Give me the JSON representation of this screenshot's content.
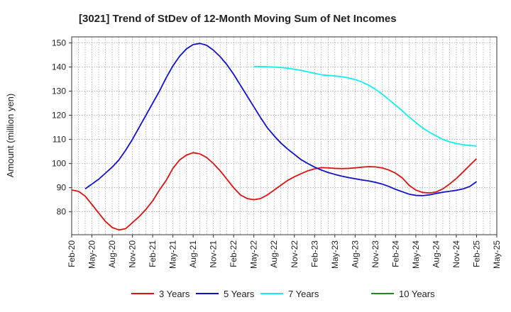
{
  "chart_data": {
    "type": "line",
    "title": "[3021]  Trend of StDev of 12-Month Moving Sum of Net Incomes",
    "xlabel": "",
    "ylabel": "Amount (million yen)",
    "x_ticks": [
      "Feb-20",
      "May-20",
      "Aug-20",
      "Nov-20",
      "Feb-21",
      "May-21",
      "Aug-21",
      "Nov-21",
      "Feb-22",
      "May-22",
      "Aug-22",
      "Nov-22",
      "Feb-23",
      "May-23",
      "Aug-23",
      "Nov-23",
      "Feb-24",
      "May-24",
      "Aug-24",
      "Nov-24",
      "Feb-25",
      "May-25"
    ],
    "y_ticks": [
      80,
      90,
      100,
      110,
      120,
      130,
      140,
      150
    ],
    "ylim": [
      70.5,
      152.5
    ],
    "grid": true,
    "legend_position": "bottom",
    "series": [
      {
        "name": "3 Years",
        "color": "#dd1111",
        "points": [
          [
            "Feb-20",
            89
          ],
          [
            "Mar-20",
            88.5
          ],
          [
            "Apr-20",
            86.5
          ],
          [
            "May-20",
            83
          ],
          [
            "Jun-20",
            79.5
          ],
          [
            "Jul-20",
            76
          ],
          [
            "Aug-20",
            73.5
          ],
          [
            "Sep-20",
            72.5
          ],
          [
            "Oct-20",
            73
          ],
          [
            "Nov-20",
            75.5
          ],
          [
            "Dec-20",
            78
          ],
          [
            "Jan-21",
            81
          ],
          [
            "Feb-21",
            84.5
          ],
          [
            "Mar-21",
            89
          ],
          [
            "Apr-21",
            93
          ],
          [
            "May-21",
            98
          ],
          [
            "Jun-21",
            101.5
          ],
          [
            "Jul-21",
            103.5
          ],
          [
            "Aug-21",
            104.5
          ],
          [
            "Sep-21",
            104
          ],
          [
            "Oct-21",
            102.5
          ],
          [
            "Nov-21",
            100
          ],
          [
            "Dec-21",
            97
          ],
          [
            "Jan-22",
            93.5
          ],
          [
            "Feb-22",
            90
          ],
          [
            "Mar-22",
            87
          ],
          [
            "Apr-22",
            85.5
          ],
          [
            "May-22",
            85
          ],
          [
            "Jun-22",
            85.5
          ],
          [
            "Jul-22",
            87
          ],
          [
            "Aug-22",
            89
          ],
          [
            "Sep-22",
            91
          ],
          [
            "Oct-22",
            93
          ],
          [
            "Nov-22",
            94.5
          ],
          [
            "Dec-22",
            95.8
          ],
          [
            "Jan-23",
            97
          ],
          [
            "Feb-23",
            97.8
          ],
          [
            "Mar-23",
            98.3
          ],
          [
            "Apr-23",
            98.2
          ],
          [
            "May-23",
            98
          ],
          [
            "Jun-23",
            97.9
          ],
          [
            "Jul-23",
            98
          ],
          [
            "Aug-23",
            98.2
          ],
          [
            "Sep-23",
            98.5
          ],
          [
            "Oct-23",
            98.7
          ],
          [
            "Nov-23",
            98.6
          ],
          [
            "Dec-23",
            98.2
          ],
          [
            "Jan-24",
            97.3
          ],
          [
            "Feb-24",
            96
          ],
          [
            "Mar-24",
            94
          ],
          [
            "Apr-24",
            91
          ],
          [
            "May-24",
            89
          ],
          [
            "Jun-24",
            88
          ],
          [
            "Jul-24",
            87.8
          ],
          [
            "Aug-24",
            88.2
          ],
          [
            "Sep-24",
            89.5
          ],
          [
            "Oct-24",
            91.5
          ],
          [
            "Nov-24",
            93.8
          ],
          [
            "Dec-24",
            96.5
          ],
          [
            "Jan-25",
            99.3
          ],
          [
            "Feb-25",
            102
          ]
        ]
      },
      {
        "name": "5 Years",
        "color": "#1111cc",
        "points": [
          [
            "Apr-20",
            89.5
          ],
          [
            "May-20",
            91.5
          ],
          [
            "Jun-20",
            93.5
          ],
          [
            "Jul-20",
            96
          ],
          [
            "Aug-20",
            98.5
          ],
          [
            "Sep-20",
            101.5
          ],
          [
            "Oct-20",
            105.5
          ],
          [
            "Nov-20",
            110
          ],
          [
            "Dec-20",
            115
          ],
          [
            "Jan-21",
            120
          ],
          [
            "Feb-21",
            125
          ],
          [
            "Mar-21",
            130
          ],
          [
            "Apr-21",
            135.5
          ],
          [
            "May-21",
            140.5
          ],
          [
            "Jun-21",
            144.5
          ],
          [
            "Jul-21",
            147.5
          ],
          [
            "Aug-21",
            149.3
          ],
          [
            "Sep-21",
            149.8
          ],
          [
            "Oct-21",
            149
          ],
          [
            "Nov-21",
            147
          ],
          [
            "Dec-21",
            144.3
          ],
          [
            "Jan-22",
            141
          ],
          [
            "Feb-22",
            137
          ],
          [
            "Mar-22",
            132.5
          ],
          [
            "Apr-22",
            128
          ],
          [
            "May-22",
            123.5
          ],
          [
            "Jun-22",
            119
          ],
          [
            "Jul-22",
            114.8
          ],
          [
            "Aug-22",
            111.5
          ],
          [
            "Sep-22",
            108.5
          ],
          [
            "Oct-22",
            106
          ],
          [
            "Nov-22",
            103.8
          ],
          [
            "Dec-22",
            101.6
          ],
          [
            "Jan-23",
            100
          ],
          [
            "Feb-23",
            98.5
          ],
          [
            "Mar-23",
            97.3
          ],
          [
            "Apr-23",
            96.3
          ],
          [
            "May-23",
            95.5
          ],
          [
            "Jun-23",
            94.8
          ],
          [
            "Jul-23",
            94.2
          ],
          [
            "Aug-23",
            93.7
          ],
          [
            "Sep-23",
            93.2
          ],
          [
            "Oct-23",
            92.8
          ],
          [
            "Nov-23",
            92.2
          ],
          [
            "Dec-23",
            91.5
          ],
          [
            "Jan-24",
            90.5
          ],
          [
            "Feb-24",
            89.3
          ],
          [
            "Mar-24",
            88.3
          ],
          [
            "Apr-24",
            87.3
          ],
          [
            "May-24",
            86.8
          ],
          [
            "Jun-24",
            86.7
          ],
          [
            "Jul-24",
            87
          ],
          [
            "Aug-24",
            87.6
          ],
          [
            "Sep-24",
            88.1
          ],
          [
            "Oct-24",
            88.5
          ],
          [
            "Nov-24",
            88.9
          ],
          [
            "Dec-24",
            89.5
          ],
          [
            "Jan-25",
            90.5
          ],
          [
            "Feb-25",
            92.5
          ]
        ]
      },
      {
        "name": "7 Years",
        "color": "#11eeee",
        "points": [
          [
            "May-22",
            140.2
          ],
          [
            "Jun-22",
            140.2
          ],
          [
            "Jul-22",
            140.1
          ],
          [
            "Aug-22",
            140
          ],
          [
            "Sep-22",
            139.8
          ],
          [
            "Oct-22",
            139.5
          ],
          [
            "Nov-22",
            139.1
          ],
          [
            "Dec-22",
            138.6
          ],
          [
            "Jan-23",
            138
          ],
          [
            "Feb-23",
            137.4
          ],
          [
            "Mar-23",
            136.8
          ],
          [
            "Apr-23",
            136.5
          ],
          [
            "May-23",
            136.3
          ],
          [
            "Jun-23",
            136
          ],
          [
            "Jul-23",
            135.5
          ],
          [
            "Aug-23",
            134.8
          ],
          [
            "Sep-23",
            133.8
          ],
          [
            "Oct-23",
            132.5
          ],
          [
            "Nov-23",
            130.8
          ],
          [
            "Dec-23",
            128.8
          ],
          [
            "Jan-24",
            126.5
          ],
          [
            "Feb-24",
            124.2
          ],
          [
            "Mar-24",
            121.8
          ],
          [
            "Apr-24",
            119.3
          ],
          [
            "May-24",
            117
          ],
          [
            "Jun-24",
            114.8
          ],
          [
            "Jul-24",
            113
          ],
          [
            "Aug-24",
            111.5
          ],
          [
            "Sep-24",
            110
          ],
          [
            "Oct-24",
            109
          ],
          [
            "Nov-24",
            108.3
          ],
          [
            "Dec-24",
            107.8
          ],
          [
            "Jan-25",
            107.5
          ],
          [
            "Feb-25",
            107.3
          ]
        ]
      },
      {
        "name": "10 Years",
        "color": "#228822",
        "points": []
      }
    ]
  }
}
